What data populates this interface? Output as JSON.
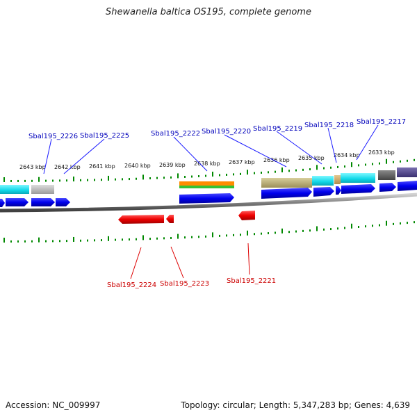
{
  "title": "Shewanella baltica OS195, complete genome",
  "footer": {
    "accession": "Accession: NC_009997",
    "summary": "Topology: circular; Length: 5,347,283 bp; Genes: 4,639"
  },
  "colors": {
    "forward_gene": "#0000ee",
    "reverse_gene": "#ee0000",
    "tick": "#008800",
    "backbone": "#777777",
    "forward_label": "#0000bb",
    "reverse_label": "#cc0000"
  },
  "kbp_labels": [
    "2643 kbp",
    "2642 kbp",
    "2641 kbp",
    "2640 kbp",
    "2639 kbp",
    "2638 kbp",
    "2637 kbp",
    "2636 kbp",
    "2635 kbp",
    "2634 kbp",
    "2633 kbp"
  ],
  "forward_genes": [
    "Sbal195_2226",
    "Sbal195_2225",
    "Sbal195_2222",
    "Sbal195_2220",
    "Sbal195_2219",
    "Sbal195_2218",
    "Sbal195_2217"
  ],
  "reverse_genes": [
    "Sbal195_2224",
    "Sbal195_2223",
    "Sbal195_2221"
  ]
}
